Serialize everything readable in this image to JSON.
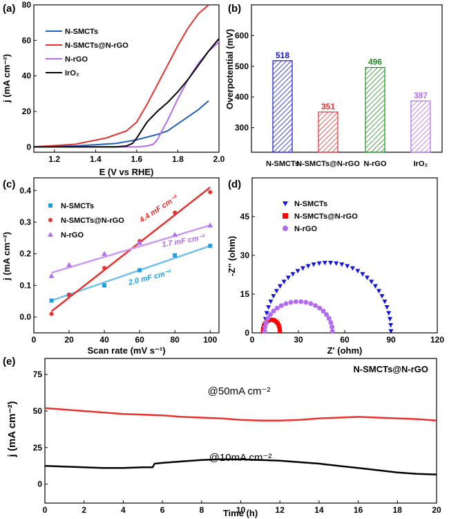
{
  "colors": {
    "blue": "#1f5fbf",
    "red": "#e8312f",
    "purple": "#b36cf0",
    "black": "#000000",
    "green": "#1f8f1f",
    "cyan": "#1f9fe0",
    "dblue": "#1414e0"
  },
  "chart_data": [
    {
      "panel": "(a)",
      "type": "line",
      "xlabel": "E (V vs RHE)",
      "ylabel": "j (mA cm⁻²)",
      "xlim": [
        1.1,
        2.0
      ],
      "ylim": [
        -3,
        80
      ],
      "xticks": [
        "1.2",
        "1.4",
        "1.6",
        "1.8",
        "2.0"
      ],
      "yticks": [
        "0",
        "20",
        "40",
        "60",
        "80"
      ],
      "legend": [
        "N-SMCTs",
        "N-SMCTs@N-rGO",
        "N-rGO",
        "IrO₂"
      ],
      "series": [
        {
          "name": "N-SMCTs",
          "x": [
            1.1,
            1.3,
            1.5,
            1.6,
            1.7,
            1.75,
            1.8,
            1.85,
            1.9,
            1.95
          ],
          "y": [
            0,
            0.5,
            2,
            4,
            7,
            9,
            13,
            17,
            21,
            26
          ]
        },
        {
          "name": "N-SMCTs@N-rGO",
          "x": [
            1.1,
            1.3,
            1.45,
            1.55,
            1.6,
            1.65,
            1.7,
            1.75,
            1.8,
            1.85,
            1.9,
            1.95
          ],
          "y": [
            0,
            1.5,
            5,
            9,
            14,
            24,
            35,
            46,
            57,
            67,
            75,
            81
          ]
        },
        {
          "name": "N-rGO",
          "x": [
            1.1,
            1.5,
            1.6,
            1.65,
            1.68,
            1.7,
            1.75,
            1.8,
            1.85,
            1.9,
            1.95,
            2.0
          ],
          "y": [
            0,
            0,
            0,
            0.5,
            1.5,
            4,
            15,
            27,
            38,
            47,
            54,
            59
          ]
        },
        {
          "name": "IrO₂",
          "x": [
            1.1,
            1.5,
            1.55,
            1.58,
            1.6,
            1.65,
            1.7,
            1.75,
            1.8,
            1.85,
            1.9,
            1.95,
            2.0
          ],
          "y": [
            0,
            0,
            0.5,
            2,
            5,
            14,
            20,
            25,
            31,
            38,
            46,
            54,
            61
          ]
        }
      ]
    },
    {
      "panel": "(b)",
      "type": "bar",
      "ylabel": "Overpotential (mV)",
      "ylim": [
        220,
        700
      ],
      "yticks": [
        "300",
        "400",
        "500",
        "600"
      ],
      "categories": [
        "N-SMCTs",
        "N-SMCTs@N-rGO",
        "N-rGO",
        "IrO₂"
      ],
      "values": [
        518,
        351,
        496,
        387
      ],
      "value_labels": [
        "518",
        "351",
        "496",
        "387"
      ]
    },
    {
      "panel": "(c)",
      "type": "scatter",
      "xlabel": "Scan rate (mV s⁻¹)",
      "ylabel": "j (mA cm⁻²)",
      "xlim": [
        0,
        105
      ],
      "ylim": [
        -0.05,
        0.44
      ],
      "xticks": [
        "0",
        "20",
        "40",
        "60",
        "80",
        "100"
      ],
      "yticks": [
        "0.0",
        "0.1",
        "0.2",
        "0.3",
        "0.4"
      ],
      "legend": [
        "N-SMCTs",
        "N-SMCTs@N-rGO",
        "N-rGO"
      ],
      "series": [
        {
          "name": "N-SMCTs",
          "x": [
            10,
            20,
            40,
            60,
            80,
            100
          ],
          "y": [
            0.052,
            0.07,
            0.1,
            0.148,
            0.195,
            0.225
          ],
          "fit": [
            0.052,
            0.225
          ]
        },
        {
          "name": "N-SMCTs@N-rGO",
          "x": [
            10,
            20,
            40,
            60,
            80,
            100
          ],
          "y": [
            0.01,
            0.07,
            0.155,
            0.24,
            0.33,
            0.395
          ],
          "fit": [
            0.018,
            0.41
          ]
        },
        {
          "name": "N-rGO",
          "x": [
            10,
            20,
            40,
            60,
            80,
            100
          ],
          "y": [
            0.13,
            0.165,
            0.2,
            0.235,
            0.26,
            0.29
          ],
          "fit": [
            0.14,
            0.29
          ]
        }
      ],
      "annotations": [
        "4.4 mF cm⁻²",
        "1.7 mF cm⁻²",
        "2.0 mF cm⁻²"
      ]
    },
    {
      "panel": "(d)",
      "type": "scatter",
      "xlabel": "Z' (ohm)",
      "ylabel": "-Z'' (ohm)",
      "xlim": [
        0,
        120
      ],
      "ylim": [
        0,
        60
      ],
      "xticks": [
        "0",
        "30",
        "60",
        "90",
        "120"
      ],
      "yticks": [
        "0",
        "15",
        "30",
        "45"
      ],
      "legend": [
        "N-SMCTs",
        "N-SMCTs@N-rGO",
        "N-rGO"
      ],
      "arcs": [
        {
          "name": "N-SMCTs",
          "start": 8,
          "end": 90,
          "height": 26.5,
          "points": 36
        },
        {
          "name": "N-SMCTs@N-rGO",
          "start": 7,
          "end": 18,
          "height": 4.5,
          "points": 14
        },
        {
          "name": "N-rGO",
          "start": 8,
          "end": 52,
          "height": 11.5,
          "points": 22
        }
      ]
    },
    {
      "panel": "(e)",
      "type": "line",
      "title": "N-SMCTs@N-rGO",
      "xlabel": "Time (h)",
      "ylabel": "j (mA cm⁻²)",
      "xlim": [
        0,
        20
      ],
      "ylim": [
        -13,
        86
      ],
      "xticks": [
        "0",
        "2",
        "4",
        "6",
        "8",
        "10",
        "12",
        "14",
        "16",
        "18",
        "20"
      ],
      "yticks": [
        "0",
        "25",
        "50",
        "75"
      ],
      "series": [
        {
          "name": "@50mA cm⁻²",
          "x": [
            0,
            1,
            2,
            3,
            4,
            5,
            6,
            7,
            8,
            9,
            10,
            11,
            12,
            13,
            14,
            15,
            16,
            17,
            18,
            19,
            20
          ],
          "y": [
            52,
            51,
            50,
            49,
            48,
            47.5,
            47,
            46,
            45.5,
            45,
            44,
            43.5,
            43.5,
            44,
            45,
            45.5,
            46,
            45.5,
            45,
            44.5,
            43.5
          ]
        },
        {
          "name": "@10mA cm⁻²",
          "x": [
            0,
            1,
            2,
            3,
            4,
            5,
            5.5,
            5.6,
            6,
            7,
            8,
            9,
            10,
            11,
            12,
            13,
            14,
            15,
            16,
            17,
            18,
            19,
            20
          ],
          "y": [
            12.5,
            12,
            11.5,
            11,
            11,
            11.5,
            11.5,
            14,
            14.5,
            15.5,
            16.5,
            17,
            17,
            16.5,
            16,
            15,
            14,
            12.5,
            11,
            9.5,
            8,
            7,
            6.5
          ]
        }
      ],
      "annotations": [
        "@50mA cm⁻²",
        "@10mA cm⁻²"
      ]
    }
  ]
}
